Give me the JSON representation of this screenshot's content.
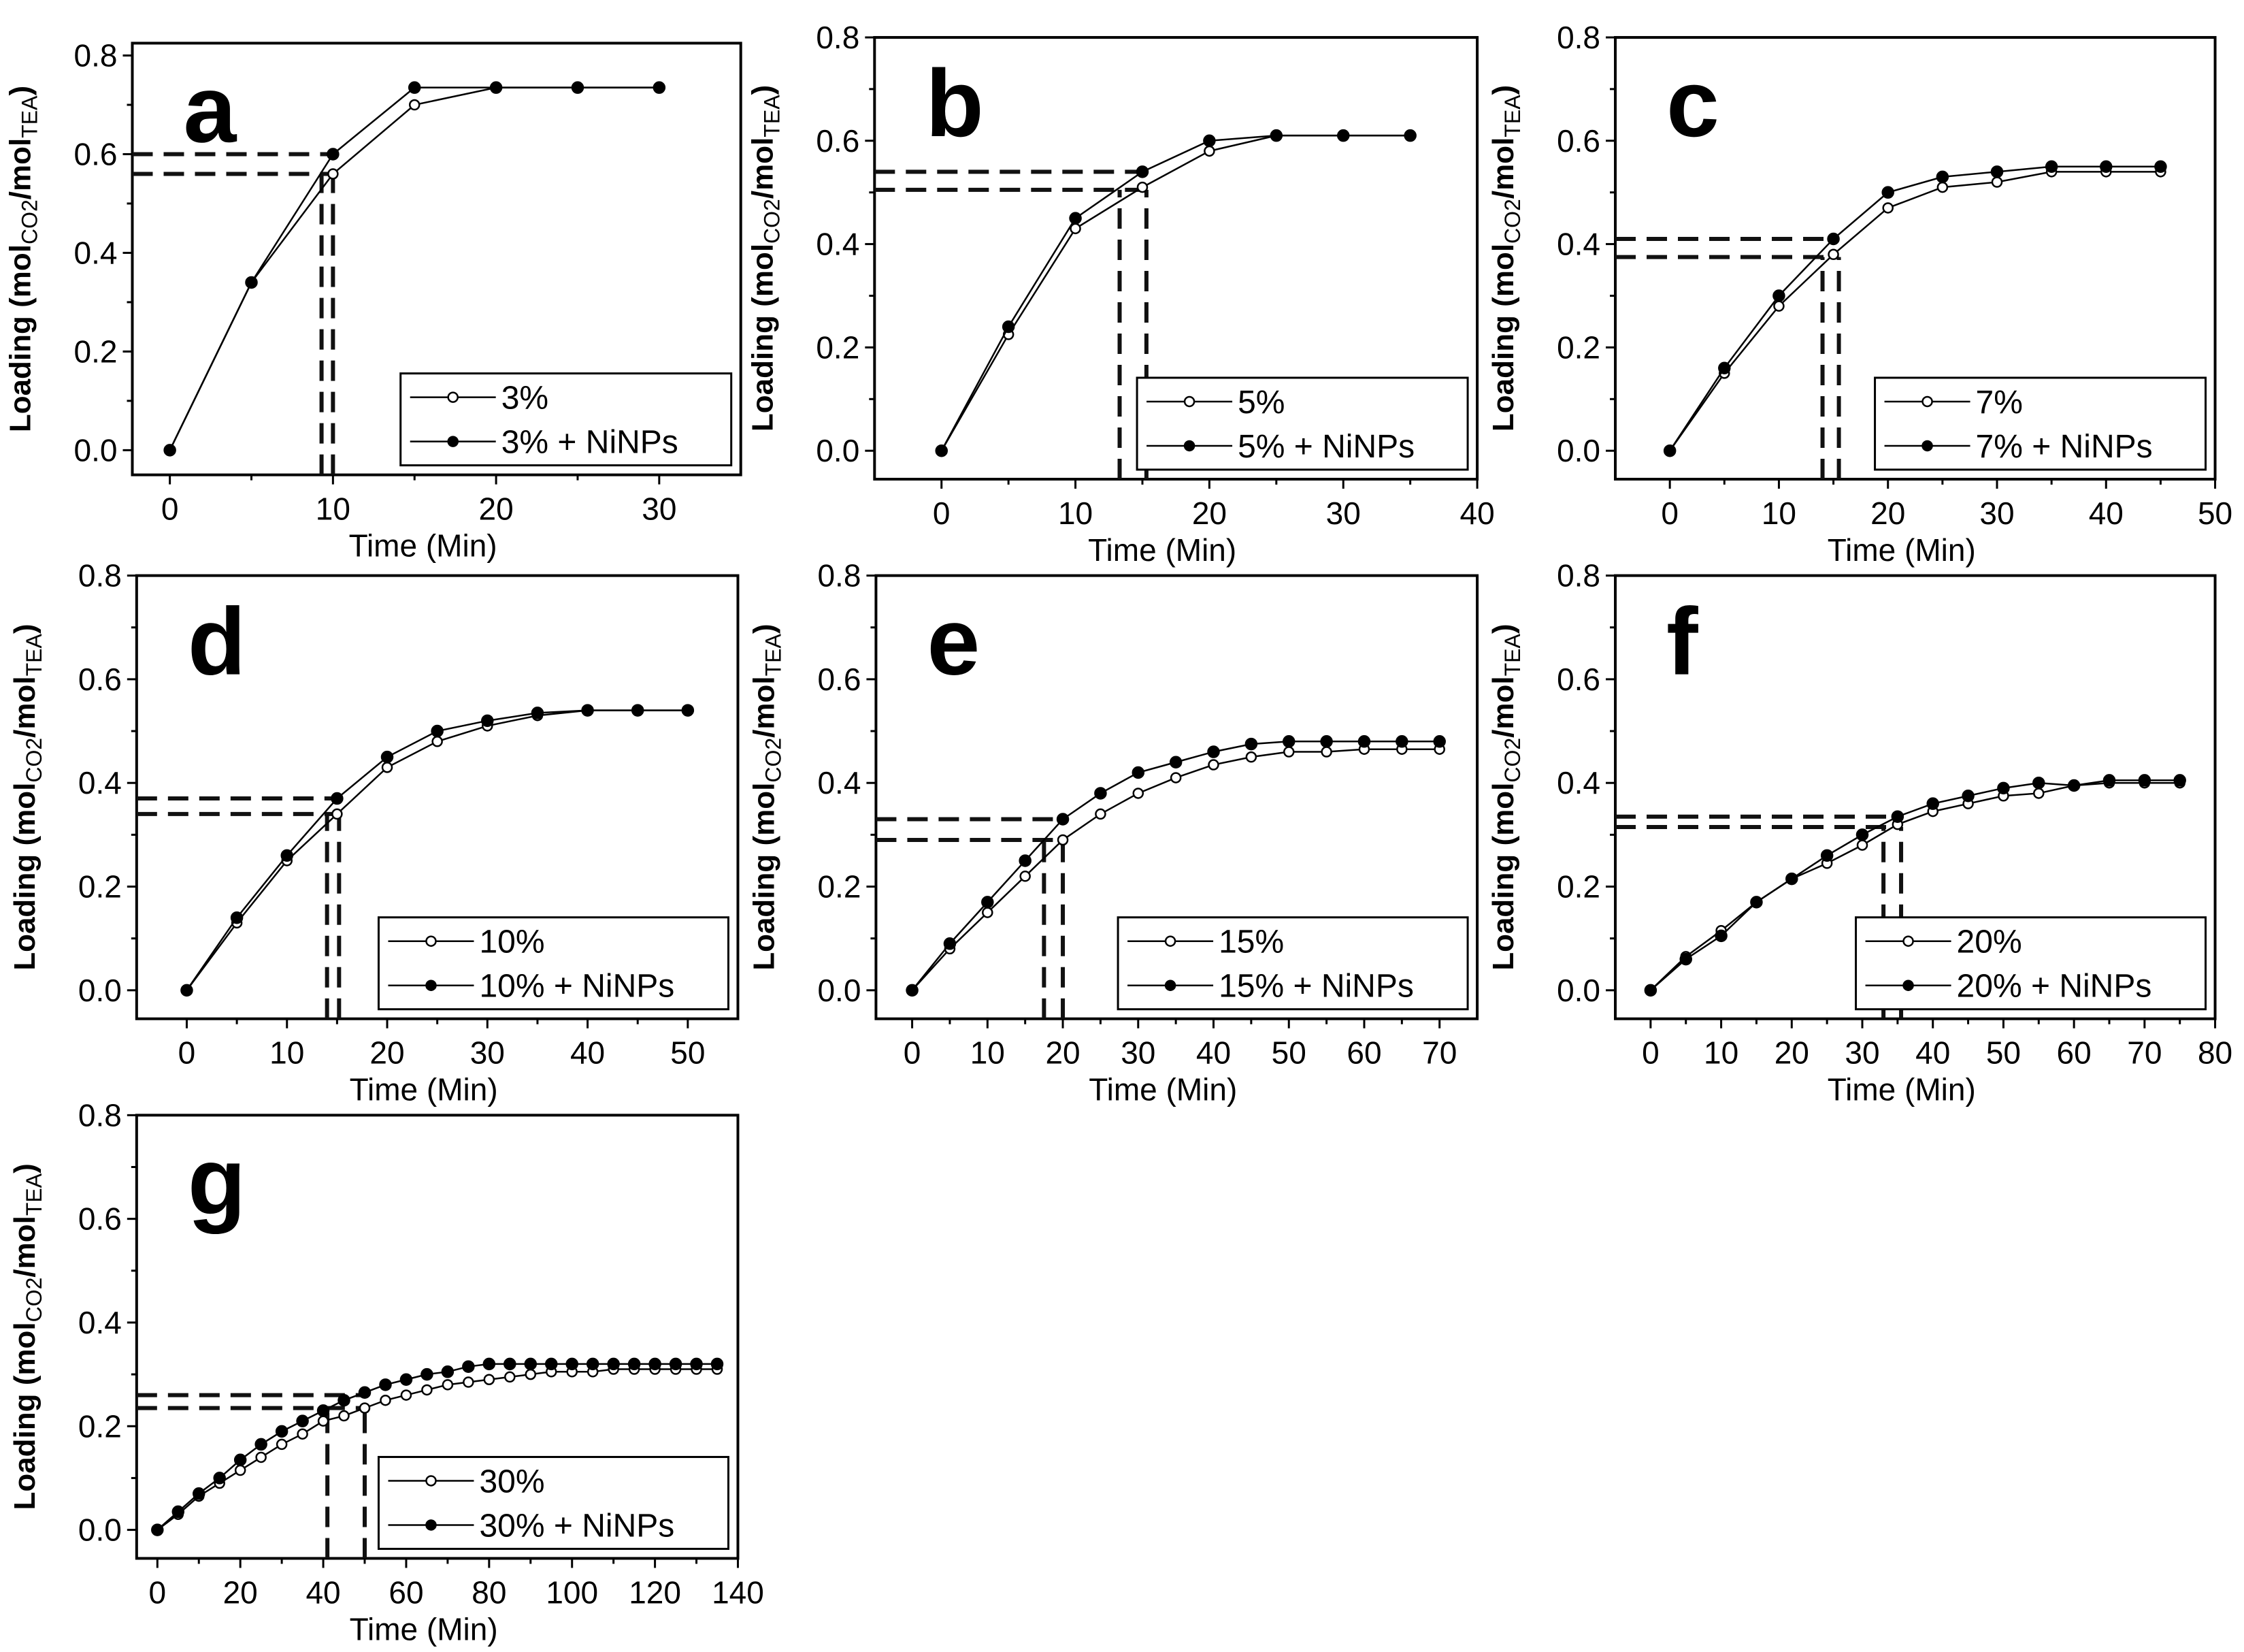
{
  "chart_data": [
    {
      "type": "line",
      "panel_label": "a",
      "xlabel": "Time (Min)",
      "ylabel": {
        "main": "Loading (mol",
        "sub1": "CO2",
        "mid": "/mol",
        "sub2": "TEA",
        "end": ")"
      },
      "xlim": [
        -2.3,
        35
      ],
      "ylim": [
        -0.05,
        0.825
      ],
      "xticks": [
        0,
        10,
        20,
        30
      ],
      "xminor": 5,
      "yticks": [
        0.0,
        0.2,
        0.4,
        0.6,
        0.8
      ],
      "yminor": 0.1,
      "legend": "bottom-right",
      "x": [
        0,
        5,
        10,
        15,
        20,
        25,
        30
      ],
      "series": [
        {
          "name": "3%",
          "marker": "open-circle",
          "values": [
            0,
            0.34,
            0.56,
            0.7,
            0.735,
            0.735,
            0.735
          ]
        },
        {
          "name": "3% + NiNPs",
          "marker": "filled-circle",
          "values": [
            0,
            0.34,
            0.6,
            0.735,
            0.735,
            0.735,
            0.735
          ]
        }
      ],
      "guides": {
        "h": [
          0.6,
          0.56
        ],
        "v": [
          9.3,
          10
        ]
      }
    },
    {
      "type": "line",
      "panel_label": "b",
      "xlabel": "Time (Min)",
      "ylabel": {
        "main": "Loading (mol",
        "sub1": "CO2",
        "mid": "/mol",
        "sub2": "TEA",
        "end": ")"
      },
      "xlim": [
        -5,
        40
      ],
      "ylim": [
        -0.055,
        0.8
      ],
      "xticks": [
        0,
        10,
        20,
        30,
        40
      ],
      "xminor": 5,
      "yticks": [
        0.0,
        0.2,
        0.4,
        0.6,
        0.8
      ],
      "yminor": 0.1,
      "legend": "bottom-right",
      "x": [
        0,
        5,
        10,
        15,
        20,
        25,
        30,
        35
      ],
      "series": [
        {
          "name": "5%",
          "marker": "open-circle",
          "values": [
            0,
            0.225,
            0.43,
            0.51,
            0.58,
            0.61,
            0.61,
            0.61
          ]
        },
        {
          "name": "5% + NiNPs",
          "marker": "filled-circle",
          "values": [
            0,
            0.24,
            0.45,
            0.54,
            0.6,
            0.61,
            0.61,
            0.61
          ]
        }
      ],
      "guides": {
        "h": [
          0.54,
          0.505
        ],
        "v": [
          13.3,
          15.3
        ]
      }
    },
    {
      "type": "line",
      "panel_label": "c",
      "xlabel": "Time (Min)",
      "ylabel": {
        "main": "Loading (mol",
        "sub1": "CO2",
        "mid": "/mol",
        "sub2": "TEA",
        "end": ")"
      },
      "xlim": [
        -5,
        50
      ],
      "ylim": [
        -0.055,
        0.8
      ],
      "xticks": [
        0,
        10,
        20,
        30,
        40,
        50
      ],
      "xminor": 5,
      "yticks": [
        0.0,
        0.2,
        0.4,
        0.6,
        0.8
      ],
      "yminor": 0.1,
      "legend": "bottom-right",
      "x": [
        0,
        5,
        10,
        15,
        20,
        25,
        30,
        35,
        40,
        45
      ],
      "series": [
        {
          "name": "7%",
          "marker": "open-circle",
          "values": [
            0,
            0.15,
            0.28,
            0.38,
            0.47,
            0.51,
            0.52,
            0.54,
            0.54,
            0.54
          ]
        },
        {
          "name": "7% + NiNPs",
          "marker": "filled-circle",
          "values": [
            0,
            0.16,
            0.3,
            0.41,
            0.5,
            0.53,
            0.54,
            0.55,
            0.55,
            0.55
          ]
        }
      ],
      "guides": {
        "h": [
          0.41,
          0.375
        ],
        "v": [
          14,
          15.5
        ]
      }
    },
    {
      "type": "line",
      "panel_label": "d",
      "xlabel": "Time (Min)",
      "ylabel": {
        "main": "Loading (mol",
        "sub1": "CO2",
        "mid": "/mol",
        "sub2": "TEA",
        "end": ")"
      },
      "xlim": [
        -5,
        55
      ],
      "ylim": [
        -0.055,
        0.8
      ],
      "xticks": [
        0,
        10,
        20,
        30,
        40,
        50
      ],
      "xminor": 5,
      "yticks": [
        0.0,
        0.2,
        0.4,
        0.6,
        0.8
      ],
      "yminor": 0.1,
      "legend": "bottom-right",
      "x": [
        0,
        5,
        10,
        15,
        20,
        25,
        30,
        35,
        40,
        45,
        50
      ],
      "series": [
        {
          "name": "10%",
          "marker": "open-circle",
          "values": [
            0,
            0.13,
            0.25,
            0.34,
            0.43,
            0.48,
            0.51,
            0.53,
            0.54,
            0.54,
            0.54
          ]
        },
        {
          "name": "10% + NiNPs",
          "marker": "filled-circle",
          "values": [
            0,
            0.14,
            0.26,
            0.37,
            0.45,
            0.5,
            0.52,
            0.535,
            0.54,
            0.54,
            0.54
          ]
        }
      ],
      "guides": {
        "h": [
          0.37,
          0.34
        ],
        "v": [
          14,
          15.2
        ]
      }
    },
    {
      "type": "line",
      "panel_label": "e",
      "xlabel": "Time (Min)",
      "ylabel": {
        "main": "Loading (mol",
        "sub1": "CO2",
        "mid": "/mol",
        "sub2": "TEA",
        "end": ")"
      },
      "xlim": [
        -4.8,
        75
      ],
      "ylim": [
        -0.055,
        0.8
      ],
      "xticks": [
        0,
        10,
        20,
        30,
        40,
        50,
        60,
        70
      ],
      "xminor": 5,
      "yticks": [
        0.0,
        0.2,
        0.4,
        0.6,
        0.8
      ],
      "yminor": 0.1,
      "legend": "bottom-right",
      "x": [
        0,
        5,
        10,
        15,
        20,
        25,
        30,
        35,
        40,
        45,
        50,
        55,
        60,
        65,
        70
      ],
      "series": [
        {
          "name": "15%",
          "marker": "open-circle",
          "values": [
            0,
            0.08,
            0.15,
            0.22,
            0.29,
            0.34,
            0.38,
            0.41,
            0.435,
            0.45,
            0.46,
            0.46,
            0.465,
            0.465,
            0.465
          ]
        },
        {
          "name": "15% + NiNPs",
          "marker": "filled-circle",
          "values": [
            0,
            0.09,
            0.17,
            0.25,
            0.33,
            0.38,
            0.42,
            0.44,
            0.46,
            0.475,
            0.48,
            0.48,
            0.48,
            0.48,
            0.48
          ]
        }
      ],
      "guides": {
        "h": [
          0.33,
          0.29
        ],
        "v": [
          17.5,
          20
        ]
      }
    },
    {
      "type": "line",
      "panel_label": "f",
      "xlabel": "Time (Min)",
      "ylabel": {
        "main": "Loading (mol",
        "sub1": "CO2",
        "mid": "/mol",
        "sub2": "TEA",
        "end": ")"
      },
      "xlim": [
        -5,
        80
      ],
      "ylim": [
        -0.055,
        0.8
      ],
      "xticks": [
        0,
        10,
        20,
        30,
        40,
        50,
        60,
        70,
        80
      ],
      "xminor": 5,
      "yticks": [
        0.0,
        0.2,
        0.4,
        0.6,
        0.8
      ],
      "yminor": 0.1,
      "legend": "bottom-right",
      "x": [
        0,
        5,
        10,
        15,
        20,
        25,
        30,
        35,
        40,
        45,
        50,
        55,
        60,
        65,
        70,
        75
      ],
      "series": [
        {
          "name": "20%",
          "marker": "open-circle",
          "values": [
            0,
            0.065,
            0.115,
            0.17,
            0.215,
            0.245,
            0.28,
            0.32,
            0.345,
            0.36,
            0.375,
            0.38,
            0.395,
            0.4,
            0.4,
            0.4
          ]
        },
        {
          "name": "20% + NiNPs",
          "marker": "filled-circle",
          "values": [
            0,
            0.06,
            0.105,
            0.17,
            0.215,
            0.26,
            0.3,
            0.335,
            0.36,
            0.375,
            0.39,
            0.4,
            0.395,
            0.405,
            0.405,
            0.405
          ]
        }
      ],
      "guides": {
        "h": [
          0.335,
          0.315
        ],
        "v": [
          33,
          35.5
        ]
      }
    },
    {
      "type": "line",
      "panel_label": "g",
      "xlabel": "Time (Min)",
      "ylabel": {
        "main": "Loading (mol",
        "sub1": "CO2",
        "mid": "/mol",
        "sub2": "TEA",
        "end": ")"
      },
      "xlim": [
        -5,
        140
      ],
      "ylim": [
        -0.055,
        0.8
      ],
      "xticks": [
        0,
        20,
        40,
        60,
        80,
        100,
        120,
        140
      ],
      "xminor": 10,
      "yticks": [
        0.0,
        0.2,
        0.4,
        0.6,
        0.8
      ],
      "yminor": 0.1,
      "legend": "bottom-right",
      "x": [
        0,
        5,
        10,
        15,
        20,
        25,
        30,
        35,
        40,
        45,
        50,
        55,
        60,
        65,
        70,
        75,
        80,
        85,
        90,
        95,
        100,
        105,
        110,
        115,
        120,
        125,
        130,
        135
      ],
      "series": [
        {
          "name": "30%",
          "marker": "open-circle",
          "values": [
            0,
            0.03,
            0.065,
            0.09,
            0.115,
            0.14,
            0.165,
            0.185,
            0.21,
            0.22,
            0.235,
            0.25,
            0.26,
            0.27,
            0.28,
            0.285,
            0.29,
            0.295,
            0.3,
            0.305,
            0.305,
            0.305,
            0.31,
            0.31,
            0.31,
            0.31,
            0.31,
            0.31
          ]
        },
        {
          "name": "30% + NiNPs",
          "marker": "filled-circle",
          "values": [
            0,
            0.035,
            0.07,
            0.1,
            0.135,
            0.165,
            0.19,
            0.21,
            0.23,
            0.25,
            0.265,
            0.28,
            0.29,
            0.3,
            0.305,
            0.315,
            0.32,
            0.32,
            0.32,
            0.32,
            0.32,
            0.32,
            0.32,
            0.32,
            0.32,
            0.32,
            0.32,
            0.32
          ]
        }
      ],
      "guides": {
        "h": [
          0.26,
          0.235
        ],
        "v": [
          41,
          50
        ]
      }
    }
  ]
}
